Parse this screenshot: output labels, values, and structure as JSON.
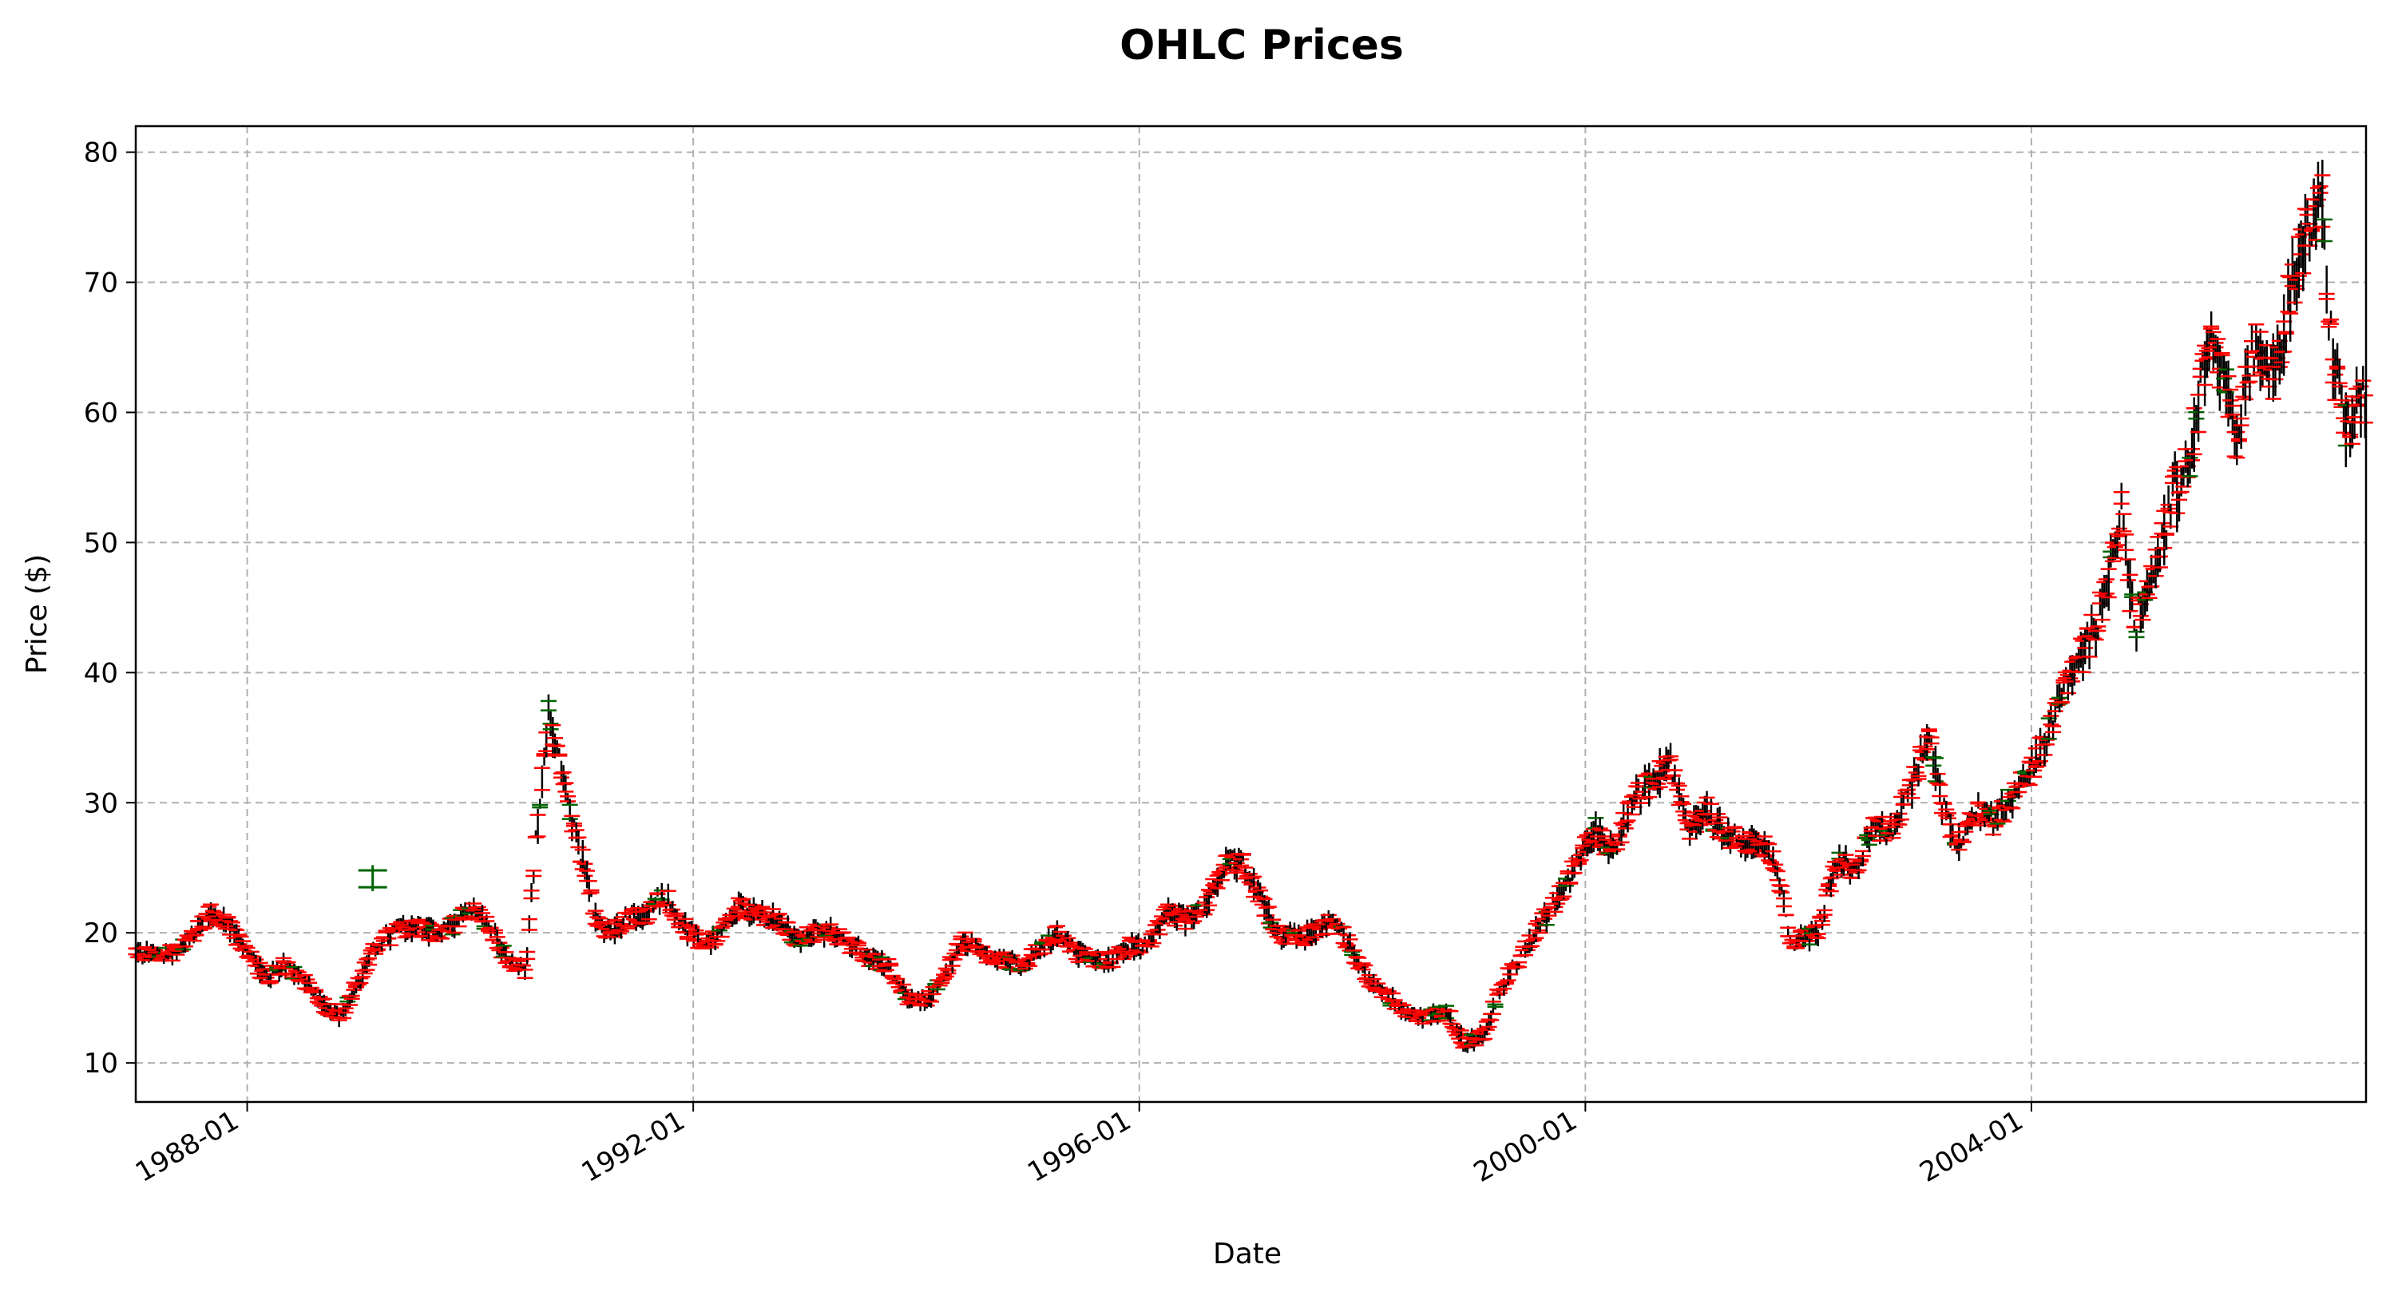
{
  "chart_data": {
    "type": "ohlc",
    "title": "OHLC Prices",
    "xlabel": "Date",
    "ylabel": "Price ($)",
    "x_range": [
      "1987-01",
      "2007-01"
    ],
    "ylim": [
      7,
      82
    ],
    "x_ticks": [
      "1988-01",
      "1992-01",
      "1996-01",
      "2000-01",
      "2004-01"
    ],
    "y_ticks": [
      10,
      20,
      30,
      40,
      50,
      60,
      70,
      80
    ],
    "grid": true,
    "grid_style": "dashed",
    "colors": {
      "down": "#ff0000",
      "up": "#006400",
      "high_low": "#000000",
      "grid": "#b0b0b0",
      "axes": "#000000",
      "background": "#ffffff"
    },
    "anchors": [
      [
        "1987-01-02",
        18.6
      ],
      [
        "1987-03-01",
        18.2
      ],
      [
        "1987-05-01",
        18.5
      ],
      [
        "1987-07-01",
        19.5
      ],
      [
        "1987-09-01",
        21.5
      ],
      [
        "1987-11-01",
        20.5
      ],
      [
        "1988-01-01",
        18.5
      ],
      [
        "1988-03-01",
        16.5
      ],
      [
        "1988-05-01",
        17.5
      ],
      [
        "1988-07-01",
        16.5
      ],
      [
        "1988-09-01",
        14.5
      ],
      [
        "1988-11-01",
        13.5
      ],
      [
        "1989-01-01",
        16.5
      ],
      [
        "1989-03-01",
        19.0
      ],
      [
        "1989-05-01",
        20.0
      ],
      [
        "1989-07-01",
        20.5
      ],
      [
        "1989-09-01",
        20.0
      ],
      [
        "1989-11-01",
        20.5
      ],
      [
        "1990-01-01",
        22.0
      ],
      [
        "1990-03-01",
        20.5
      ],
      [
        "1990-05-01",
        18.0
      ],
      [
        "1990-07-01",
        17.0
      ],
      [
        "1990-08-01",
        26.0
      ],
      [
        "1990-09-15",
        37.0
      ],
      [
        "1990-10-15",
        34.0
      ],
      [
        "1990-12-01",
        28.0
      ],
      [
        "1991-01-15",
        25.0
      ],
      [
        "1991-02-15",
        21.0
      ],
      [
        "1991-04-01",
        20.0
      ],
      [
        "1991-06-01",
        21.0
      ],
      [
        "1991-08-01",
        21.5
      ],
      [
        "1991-10-01",
        23.0
      ],
      [
        "1991-12-01",
        20.5
      ],
      [
        "1992-02-01",
        19.0
      ],
      [
        "1992-04-01",
        20.0
      ],
      [
        "1992-06-01",
        22.0
      ],
      [
        "1992-08-01",
        21.5
      ],
      [
        "1992-10-01",
        21.0
      ],
      [
        "1992-12-01",
        19.5
      ],
      [
        "1993-02-01",
        20.0
      ],
      [
        "1993-04-01",
        20.0
      ],
      [
        "1993-06-01",
        19.0
      ],
      [
        "1993-08-01",
        18.0
      ],
      [
        "1993-10-01",
        17.5
      ],
      [
        "1993-12-01",
        15.0
      ],
      [
        "1994-02-01",
        14.8
      ],
      [
        "1994-04-01",
        16.5
      ],
      [
        "1994-06-01",
        19.5
      ],
      [
        "1994-08-01",
        18.5
      ],
      [
        "1994-10-01",
        18.0
      ],
      [
        "1994-12-01",
        17.5
      ],
      [
        "1995-02-01",
        18.5
      ],
      [
        "1995-04-01",
        20.0
      ],
      [
        "1995-06-01",
        18.5
      ],
      [
        "1995-08-01",
        18.0
      ],
      [
        "1995-10-01",
        17.8
      ],
      [
        "1995-12-01",
        19.0
      ],
      [
        "1996-02-01",
        19.0
      ],
      [
        "1996-04-01",
        21.5
      ],
      [
        "1996-06-01",
        21.0
      ],
      [
        "1996-08-01",
        22.0
      ],
      [
        "1996-10-01",
        25.0
      ],
      [
        "1996-12-01",
        25.5
      ],
      [
        "1997-02-01",
        22.5
      ],
      [
        "1997-04-01",
        20.0
      ],
      [
        "1997-06-01",
        19.5
      ],
      [
        "1997-08-01",
        20.0
      ],
      [
        "1997-10-01",
        21.0
      ],
      [
        "1997-12-01",
        18.5
      ],
      [
        "1998-02-01",
        16.0
      ],
      [
        "1998-04-01",
        15.0
      ],
      [
        "1998-06-01",
        13.5
      ],
      [
        "1998-08-01",
        13.5
      ],
      [
        "1998-10-01",
        14.0
      ],
      [
        "1998-12-01",
        11.5
      ],
      [
        "1999-02-01",
        12.0
      ],
      [
        "1999-04-01",
        16.0
      ],
      [
        "1999-06-01",
        18.0
      ],
      [
        "1999-08-01",
        20.5
      ],
      [
        "1999-10-01",
        22.5
      ],
      [
        "1999-12-01",
        25.5
      ],
      [
        "2000-02-01",
        28.0
      ],
      [
        "2000-04-01",
        26.0
      ],
      [
        "2000-06-01",
        30.0
      ],
      [
        "2000-08-01",
        31.5
      ],
      [
        "2000-10-01",
        33.0
      ],
      [
        "2000-12-01",
        28.0
      ],
      [
        "2001-02-01",
        29.5
      ],
      [
        "2001-04-01",
        27.5
      ],
      [
        "2001-06-01",
        27.0
      ],
      [
        "2001-08-01",
        27.0
      ],
      [
        "2001-09-15",
        25.5
      ],
      [
        "2001-11-01",
        19.5
      ],
      [
        "2001-12-15",
        19.5
      ],
      [
        "2002-02-01",
        20.0
      ],
      [
        "2002-04-01",
        25.5
      ],
      [
        "2002-06-01",
        25.0
      ],
      [
        "2002-08-01",
        28.0
      ],
      [
        "2002-10-01",
        28.0
      ],
      [
        "2002-12-01",
        31.0
      ],
      [
        "2003-02-01",
        35.0
      ],
      [
        "2003-03-15",
        30.0
      ],
      [
        "2003-05-01",
        27.0
      ],
      [
        "2003-07-01",
        29.5
      ],
      [
        "2003-09-01",
        28.5
      ],
      [
        "2003-11-01",
        30.5
      ],
      [
        "2004-01-01",
        32.5
      ],
      [
        "2004-03-01",
        35.5
      ],
      [
        "2004-05-01",
        39.5
      ],
      [
        "2004-07-01",
        42.0
      ],
      [
        "2004-09-01",
        46.0
      ],
      [
        "2004-10-20",
        53.0
      ],
      [
        "2004-12-01",
        43.5
      ],
      [
        "2005-02-01",
        47.0
      ],
      [
        "2005-04-01",
        53.0
      ],
      [
        "2005-06-01",
        56.0
      ],
      [
        "2005-08-01",
        65.0
      ],
      [
        "2005-09-15",
        63.0
      ],
      [
        "2005-11-01",
        58.0
      ],
      [
        "2006-01-01",
        65.0
      ],
      [
        "2006-03-01",
        62.0
      ],
      [
        "2006-05-01",
        70.0
      ],
      [
        "2006-07-01",
        75.0
      ],
      [
        "2006-08-10",
        76.5
      ],
      [
        "2006-09-15",
        63.0
      ],
      [
        "2006-11-01",
        59.0
      ],
      [
        "2006-12-29",
        61.0
      ]
    ],
    "notable_bars": [
      {
        "date": "1989-02-15",
        "open": 23.5,
        "high": 25.2,
        "low": 23.2,
        "close": 24.8
      }
    ]
  }
}
